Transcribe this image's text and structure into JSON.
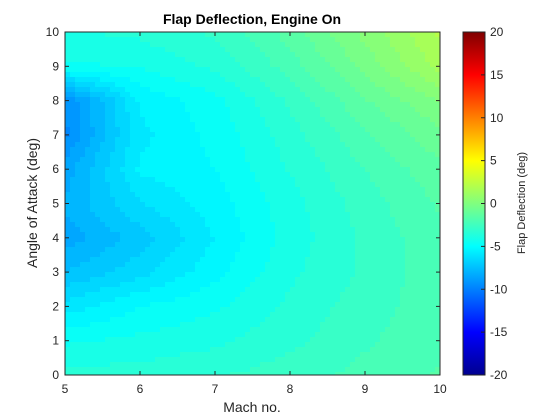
{
  "chart_data": {
    "type": "heatmap",
    "subtype": "filled-contour",
    "title": "Flap Deflection, Engine On",
    "xlabel": "Mach no.",
    "ylabel": "Angle of Attack (deg)",
    "xlim": [
      5,
      10
    ],
    "ylim": [
      0,
      10
    ],
    "x_ticks": [
      "5",
      "6",
      "7",
      "8",
      "9",
      "10"
    ],
    "y_ticks": [
      "0",
      "1",
      "2",
      "3",
      "4",
      "5",
      "6",
      "7",
      "8",
      "9",
      "10"
    ],
    "x": [
      5,
      6,
      7,
      8,
      9,
      10
    ],
    "y": [
      0,
      1,
      2,
      3,
      4,
      5,
      6,
      7,
      8,
      9,
      10
    ],
    "z": [
      [
        -3.5,
        -3.5,
        -3.2,
        -2.8,
        -2.3,
        -1.8
      ],
      [
        -4.5,
        -4.2,
        -3.9,
        -3.3,
        -2.6,
        -2.0
      ],
      [
        -6.0,
        -5.0,
        -4.5,
        -3.6,
        -2.8,
        -2.1
      ],
      [
        -7.5,
        -6.5,
        -5.2,
        -3.9,
        -3.0,
        -2.1
      ],
      [
        -8.5,
        -7.2,
        -5.6,
        -4.1,
        -3.0,
        -2.0
      ],
      [
        -8.0,
        -6.3,
        -5.3,
        -4.0,
        -2.8,
        -1.8
      ],
      [
        -8.5,
        -5.5,
        -5.0,
        -3.7,
        -2.5,
        -1.4
      ],
      [
        -9.5,
        -5.8,
        -4.8,
        -3.4,
        -2.0,
        -0.8
      ],
      [
        -9.5,
        -5.5,
        -4.6,
        -3.0,
        -1.3,
        0.0
      ],
      [
        -4.5,
        -4.3,
        -3.6,
        -2.2,
        -0.4,
        1.5
      ],
      [
        -3.8,
        -3.6,
        -3.0,
        -1.6,
        0.2,
        2.0
      ]
    ],
    "colorbar": {
      "label": "Flap Deflection (deg)",
      "range": [
        -20,
        20
      ],
      "ticks": [
        "20",
        "15",
        "10",
        "5",
        "0",
        "-5",
        "-10",
        "-15",
        "-20"
      ],
      "colormap": "jet"
    },
    "grid": false,
    "legend": "none"
  }
}
